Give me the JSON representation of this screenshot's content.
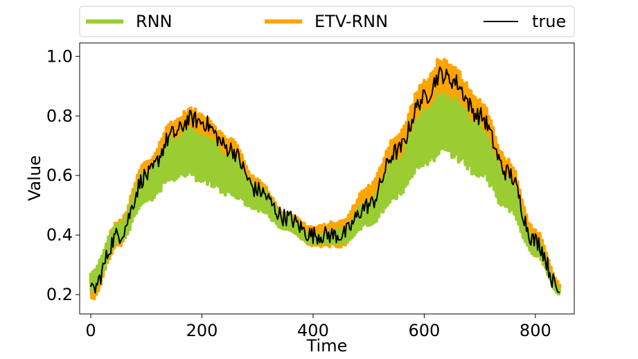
{
  "chart_data": {
    "type": "line",
    "title": "",
    "xlabel": "Time",
    "ylabel": "Value",
    "xlim": [
      -20,
      870
    ],
    "ylim": [
      0.135,
      1.045
    ],
    "xticks": [
      0,
      200,
      400,
      600,
      800
    ],
    "yticks": [
      0.2,
      0.4,
      0.6,
      0.8,
      1.0
    ],
    "xtick_labels": [
      "0",
      "200",
      "400",
      "600",
      "800"
    ],
    "ytick_labels": [
      "0.2",
      "0.4",
      "0.6",
      "0.8",
      "1.0"
    ],
    "grid": false,
    "legend_position": "top, above plot, three columns",
    "series": [
      {
        "name": "RNN",
        "color": "#9acd32",
        "style": "thick line, strong oscillation (band)",
        "x": [
          0,
          50,
          100,
          150,
          180,
          200,
          250,
          300,
          350,
          400,
          450,
          500,
          550,
          600,
          630,
          650,
          700,
          750,
          800,
          845
        ],
        "upper": [
          0.28,
          0.44,
          0.62,
          0.74,
          0.76,
          0.75,
          0.67,
          0.57,
          0.47,
          0.4,
          0.42,
          0.52,
          0.66,
          0.83,
          0.88,
          0.87,
          0.78,
          0.6,
          0.39,
          0.22
        ],
        "lower": [
          0.2,
          0.37,
          0.51,
          0.58,
          0.59,
          0.57,
          0.53,
          0.48,
          0.42,
          0.37,
          0.37,
          0.43,
          0.52,
          0.62,
          0.66,
          0.65,
          0.59,
          0.48,
          0.33,
          0.2
        ]
      },
      {
        "name": "ETV-RNN",
        "color": "#ffa500",
        "style": "thick line, noisy",
        "x": [
          0,
          50,
          100,
          150,
          180,
          200,
          250,
          300,
          350,
          400,
          450,
          500,
          550,
          600,
          630,
          650,
          700,
          750,
          800,
          845
        ],
        "upper": [
          0.26,
          0.45,
          0.65,
          0.79,
          0.83,
          0.81,
          0.73,
          0.59,
          0.48,
          0.43,
          0.45,
          0.57,
          0.74,
          0.92,
          1.0,
          0.97,
          0.86,
          0.66,
          0.42,
          0.24
        ],
        "lower": [
          0.18,
          0.36,
          0.56,
          0.68,
          0.71,
          0.7,
          0.62,
          0.51,
          0.42,
          0.36,
          0.36,
          0.46,
          0.61,
          0.77,
          0.85,
          0.83,
          0.73,
          0.55,
          0.33,
          0.2
        ]
      },
      {
        "name": "true",
        "color": "#000000",
        "style": "thin line, noisy",
        "x": [
          0,
          50,
          100,
          150,
          180,
          200,
          250,
          300,
          350,
          400,
          450,
          500,
          550,
          600,
          630,
          650,
          700,
          750,
          800,
          845
        ],
        "y": [
          0.21,
          0.4,
          0.6,
          0.74,
          0.79,
          0.78,
          0.69,
          0.55,
          0.46,
          0.4,
          0.4,
          0.5,
          0.68,
          0.86,
          0.94,
          0.92,
          0.8,
          0.61,
          0.38,
          0.21
        ]
      }
    ]
  }
}
